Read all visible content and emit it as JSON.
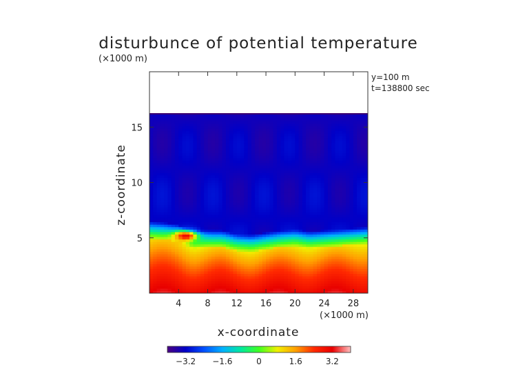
{
  "chart_data": {
    "type": "heatmap",
    "title": "disturbunce of potential temperature",
    "xlabel": "x-coordinate",
    "ylabel": "z-coordinate",
    "x_unit_label": "(×1000 m)",
    "y_unit_label": "(×1000 m)",
    "annotations": [
      "y=100 m",
      "t=138800 sec"
    ],
    "xlim": [
      0,
      30
    ],
    "ylim": [
      0,
      20
    ],
    "x_ticks": [
      4,
      8,
      12,
      16,
      20,
      24,
      28
    ],
    "y_ticks": [
      5,
      10,
      15
    ],
    "colorbar": {
      "range": [
        -4,
        4
      ],
      "ticks": [
        "−3.2",
        "−1.6",
        "0",
        "1.6",
        "3.2"
      ],
      "colors": [
        "#4b0082",
        "#0000c8",
        "#0050ff",
        "#00b0ff",
        "#00e8a0",
        "#40ff20",
        "#f0f000",
        "#ffa000",
        "#ff2a00",
        "#e80000",
        "#ffc0c0"
      ]
    },
    "field": {
      "top_boundary_z": 16.2,
      "upper_layer_value": -3.2,
      "transition_z_by_x": [
        [
          0,
          5.6
        ],
        [
          2,
          5.5
        ],
        [
          4,
          5.3
        ],
        [
          6,
          4.7
        ],
        [
          8,
          4.8
        ],
        [
          10,
          4.8
        ],
        [
          12,
          4.5
        ],
        [
          14,
          4.4
        ],
        [
          16,
          4.6
        ],
        [
          18,
          4.8
        ],
        [
          20,
          4.9
        ],
        [
          22,
          4.7
        ],
        [
          24,
          4.8
        ],
        [
          26,
          4.9
        ],
        [
          28,
          5.0
        ],
        [
          30,
          5.1
        ]
      ],
      "warm_anomaly": {
        "x": 5.0,
        "z": 5.2,
        "value": 3.0
      },
      "surface_value": 3.2
    },
    "grid": false,
    "colorbar_placement": "bottom"
  }
}
